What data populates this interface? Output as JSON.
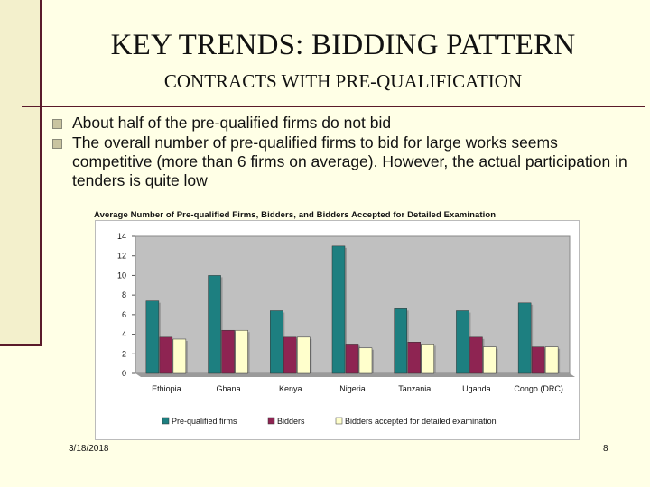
{
  "slide": {
    "title": "KEY TRENDS: BIDDING PATTERN",
    "subtitle": "CONTRACTS WITH PRE-QUALIFICATION",
    "bullets": [
      "About half of the pre-qualified firms do not bid",
      "The overall number of pre-qualified firms to bid for large works seems competitive (more than 6 firms on average). However, the actual participation in tenders is quite low"
    ],
    "date": "3/18/2018",
    "page_number": "8"
  },
  "chart_data": {
    "type": "bar",
    "title": "Average Number of Pre-qualified Firms, Bidders, and Bidders Accepted for Detailed Examination",
    "categories": [
      "Ethiopia",
      "Ghana",
      "Kenya",
      "Nigeria",
      "Tanzania",
      "Uganda",
      "Congo (DRC)"
    ],
    "series": [
      {
        "name": "Pre-qualified firms",
        "color": "#1d7f80",
        "values": [
          7.4,
          10.0,
          6.4,
          13.0,
          6.6,
          6.4,
          7.2
        ]
      },
      {
        "name": "Bidders",
        "color": "#8e2452",
        "values": [
          3.7,
          4.4,
          3.7,
          3.0,
          3.2,
          3.7,
          2.7
        ]
      },
      {
        "name": "Bidders accepted for detailed examination",
        "color": "#ffffcc",
        "values": [
          3.5,
          4.4,
          3.7,
          2.6,
          3.0,
          2.7,
          2.7
        ]
      }
    ],
    "yticks": [
      0,
      2,
      4,
      6,
      8,
      10,
      12,
      14
    ],
    "ylim": [
      0,
      14
    ],
    "plot_background": "#c0c0c0",
    "grid": false,
    "legend_position": "bottom"
  }
}
